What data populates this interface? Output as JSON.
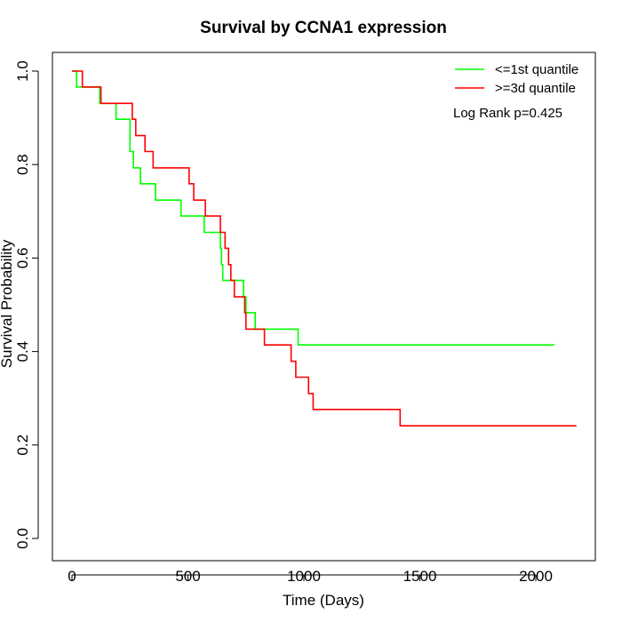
{
  "chart_data": {
    "type": "line",
    "title": "Survival by CCNA1 expression",
    "xlabel": "Time (Days)",
    "ylabel": "Survival Probability",
    "xlim": [
      0,
      2180
    ],
    "ylim": [
      0,
      1.0
    ],
    "x_ticks": [
      0,
      500,
      1000,
      1500,
      2000
    ],
    "y_ticks": [
      "0.0",
      "0.2",
      "0.4",
      "0.6",
      "0.8",
      "1.0"
    ],
    "grid": false,
    "legend_position": "top-right",
    "annotation": "Log Rank p=0.425",
    "series": [
      {
        "name": "<=1st quantile",
        "color": "#00ff00",
        "steps": [
          [
            0,
            1.0
          ],
          [
            20,
            0.966
          ],
          [
            120,
            0.931
          ],
          [
            190,
            0.897
          ],
          [
            250,
            0.828
          ],
          [
            265,
            0.793
          ],
          [
            295,
            0.759
          ],
          [
            360,
            0.724
          ],
          [
            470,
            0.69
          ],
          [
            570,
            0.655
          ],
          [
            640,
            0.621
          ],
          [
            645,
            0.586
          ],
          [
            650,
            0.552
          ],
          [
            740,
            0.517
          ],
          [
            750,
            0.483
          ],
          [
            790,
            0.448
          ],
          [
            975,
            0.414
          ],
          [
            2080,
            0.414
          ]
        ]
      },
      {
        "name": ">=3d quantile",
        "color": "#ff0000",
        "steps": [
          [
            0,
            1.0
          ],
          [
            45,
            0.966
          ],
          [
            125,
            0.931
          ],
          [
            260,
            0.897
          ],
          [
            275,
            0.862
          ],
          [
            315,
            0.828
          ],
          [
            350,
            0.793
          ],
          [
            505,
            0.759
          ],
          [
            525,
            0.724
          ],
          [
            575,
            0.69
          ],
          [
            640,
            0.655
          ],
          [
            660,
            0.621
          ],
          [
            675,
            0.586
          ],
          [
            685,
            0.552
          ],
          [
            700,
            0.517
          ],
          [
            745,
            0.483
          ],
          [
            750,
            0.448
          ],
          [
            830,
            0.414
          ],
          [
            945,
            0.379
          ],
          [
            965,
            0.345
          ],
          [
            1020,
            0.31
          ],
          [
            1040,
            0.276
          ],
          [
            1415,
            0.241
          ],
          [
            2175,
            0.241
          ]
        ]
      }
    ]
  }
}
